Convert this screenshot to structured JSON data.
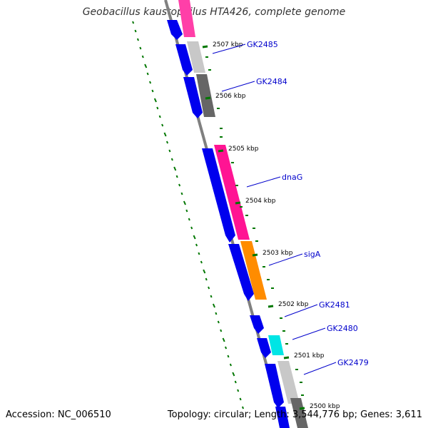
{
  "title": "Geobacillus kaustophilus HTA426, complete genome",
  "footer": {
    "accession": "Accession: NC_006510",
    "topology": "Topology: circular; Length: 3,544,776 bp; Genes: 3,611"
  },
  "colors": {
    "backbone": "#808080",
    "tick": "#007700",
    "label": "#0000cc",
    "cds_forward": "#0000ee",
    "cds_pink": "#ff1493",
    "cds_orange": "#ff8c00",
    "cds_cyan": "#00e5e5",
    "cds_light_gray": "#c8c8c8",
    "cds_dark_gray": "#666666"
  },
  "kbp_labels": [
    "2507 kbp",
    "2506 kbp",
    "2505 kbp",
    "2504 kbp",
    "2503 kbp",
    "2502 kbp",
    "2501 kbp",
    "2500 kbp"
  ],
  "gene_labels": [
    "GK2485",
    "GK2484",
    "dnaG",
    "sigA",
    "GK2481",
    "GK2480",
    "GK2479"
  ],
  "features": {
    "inner_blue": [
      "blue-cds",
      "blue-cds",
      "blue-cds",
      "blue-cds",
      "blue-cds",
      "blue-cds",
      "blue-cds",
      "blue-cds",
      "blue-cds"
    ],
    "outer_color": [
      "magenta-cds",
      "light-gray-cds",
      "dark-gray-cds",
      "pink-cds",
      "orange-cds",
      "cyan-cds",
      "light-gray-cds",
      "dark-gray-cds"
    ]
  }
}
